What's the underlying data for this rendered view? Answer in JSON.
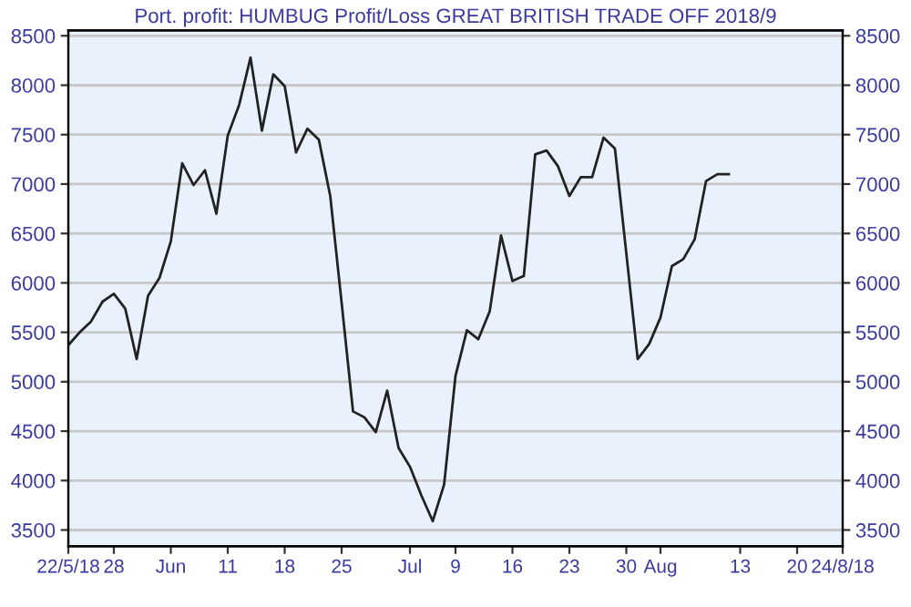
{
  "chart_data": {
    "type": "line",
    "title": "Port. profit: HUMBUG Profit/Loss GREAT BRITISH TRADE OFF 2018/9",
    "categories": [
      "22/5/18",
      null,
      null,
      null,
      "28",
      null,
      null,
      null,
      null,
      "Jun",
      null,
      null,
      null,
      null,
      "11",
      null,
      null,
      null,
      null,
      "18",
      null,
      null,
      null,
      null,
      "25",
      null,
      null,
      null,
      null,
      null,
      "Jul",
      null,
      null,
      null,
      "9",
      null,
      null,
      null,
      null,
      "16",
      null,
      null,
      null,
      null,
      "23",
      null,
      null,
      null,
      null,
      "30",
      null,
      null,
      "Aug",
      null,
      null,
      null,
      null,
      null,
      null,
      "13",
      null,
      null,
      null,
      null,
      "20",
      null,
      null,
      null,
      "24/8/18"
    ],
    "series": [
      {
        "color": "#222222",
        "values": [
          5370,
          5500,
          5610,
          5810,
          5890,
          5740,
          5230,
          5870,
          6050,
          6420,
          7210,
          6990,
          7140,
          6700,
          7490,
          7800,
          8280,
          7540,
          8110,
          7990,
          7320,
          7560,
          7450,
          6880,
          5800,
          4700,
          4640,
          4490,
          4910,
          4330,
          4140,
          3850,
          3590,
          3960,
          5060,
          5520,
          5430,
          5710,
          6480,
          6020,
          6070,
          7300,
          7340,
          7180,
          6880,
          7070,
          7070,
          7470,
          7360,
          6300,
          5230,
          5380,
          5650,
          6170,
          6240,
          6440,
          7030,
          7100,
          7100,
          null,
          null,
          null,
          null,
          null,
          null,
          null,
          null,
          null,
          null
        ]
      }
    ],
    "ylim": [
      3335,
      8555
    ],
    "yticks": [
      3500,
      4000,
      4500,
      5000,
      5500,
      6000,
      6500,
      7000,
      7500,
      8000,
      8500
    ],
    "y2lim": [
      3335,
      8555
    ],
    "y2ticks": [
      3500,
      4000,
      4500,
      5000,
      5500,
      6000,
      6500,
      7000,
      7500,
      8000,
      8500
    ],
    "grid": "y",
    "marker": "none",
    "line_style": "solid"
  }
}
